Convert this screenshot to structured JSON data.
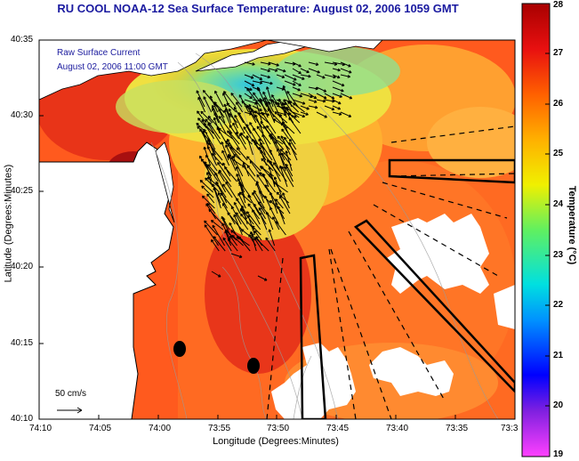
{
  "title": "RU COOL  NOAA-12  Sea Surface Temperature:  August 02, 2006 1059 GMT",
  "annotation": {
    "line1": "Raw Surface Current",
    "line2": "August 02, 2006 11:00 GMT"
  },
  "scale_label": "50 cm/s",
  "axes": {
    "xlabel": "Longitude (Degrees:Minutes)",
    "ylabel": "Latitude (Degrees:Minutes)",
    "lat_ticks": [
      "40:35",
      "40:30",
      "40:25",
      "40:20",
      "40:15",
      "40:10"
    ],
    "lon_ticks": [
      "74:10",
      "74:05",
      "74:00",
      "73:55",
      "73:50",
      "73:45",
      "73:40",
      "73:35",
      "73:3"
    ]
  },
  "colorbar": {
    "label": "Temperature (°C)",
    "ticks": [
      "28",
      "27",
      "26",
      "25",
      "24",
      "23",
      "22",
      "21",
      "20",
      "19"
    ],
    "min": 19,
    "max": 28
  },
  "colors": {
    "title": "#1a1aa0",
    "land": "#ffffff",
    "warm": "#e8401a",
    "cool": "#30c8e0"
  }
}
